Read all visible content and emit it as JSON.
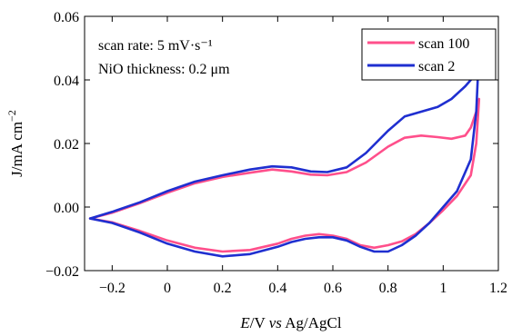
{
  "chart_data": {
    "type": "line",
    "xlabel_parts": [
      {
        "text": "E",
        "italic": true
      },
      {
        "text": "/V ",
        "italic": false
      },
      {
        "text": "vs",
        "italic": true
      },
      {
        "text": " Ag/AgCl",
        "italic": false
      }
    ],
    "ylabel": "J/mA cm",
    "ylabel_sup": "−2",
    "xlim": [
      -0.3,
      1.2
    ],
    "ylim": [
      -0.02,
      0.06
    ],
    "xticks": [
      -0.2,
      0,
      0.2,
      0.4,
      0.6,
      0.8,
      1,
      1.2
    ],
    "xtick_labels": [
      "−0.2",
      "0",
      "0.2",
      "0.4",
      "0.6",
      "0.8",
      "1",
      "1.2"
    ],
    "yticks": [
      -0.02,
      0,
      0.02,
      0.04,
      0.06
    ],
    "ytick_labels": [
      "−0.02",
      "0.00",
      "0.02",
      "0.04",
      "0.06"
    ],
    "grid": false,
    "legend_position": "top-right",
    "annotations": [
      "scan rate: 5 mV·s⁻¹",
      "NiO thickness: 0.2 μm"
    ],
    "series": [
      {
        "name": "scan 100",
        "color": "#ff4f8b",
        "upper": [
          [
            -0.28,
            -0.0036
          ],
          [
            -0.2,
            -0.0018
          ],
          [
            -0.1,
            0.0012
          ],
          [
            0,
            0.0045
          ],
          [
            0.1,
            0.0075
          ],
          [
            0.2,
            0.0095
          ],
          [
            0.3,
            0.0108
          ],
          [
            0.38,
            0.0118
          ],
          [
            0.45,
            0.0112
          ],
          [
            0.52,
            0.0102
          ],
          [
            0.58,
            0.01
          ],
          [
            0.65,
            0.011
          ],
          [
            0.72,
            0.014
          ],
          [
            0.8,
            0.019
          ],
          [
            0.86,
            0.0218
          ],
          [
            0.92,
            0.0225
          ],
          [
            0.98,
            0.022
          ],
          [
            1.03,
            0.0215
          ],
          [
            1.08,
            0.0225
          ],
          [
            1.1,
            0.025
          ],
          [
            1.12,
            0.03
          ],
          [
            1.13,
            0.034
          ]
        ],
        "lower": [
          [
            1.13,
            0.034
          ],
          [
            1.12,
            0.02
          ],
          [
            1.1,
            0.01
          ],
          [
            1.05,
            0.0035
          ],
          [
            1.0,
            -0.001
          ],
          [
            0.95,
            -0.005
          ],
          [
            0.9,
            -0.0085
          ],
          [
            0.85,
            -0.0108
          ],
          [
            0.8,
            -0.012
          ],
          [
            0.75,
            -0.0128
          ],
          [
            0.7,
            -0.012
          ],
          [
            0.65,
            -0.01
          ],
          [
            0.6,
            -0.009
          ],
          [
            0.55,
            -0.0085
          ],
          [
            0.5,
            -0.009
          ],
          [
            0.45,
            -0.01
          ],
          [
            0.4,
            -0.0115
          ],
          [
            0.3,
            -0.0135
          ],
          [
            0.2,
            -0.014
          ],
          [
            0.1,
            -0.0128
          ],
          [
            0,
            -0.0105
          ],
          [
            -0.1,
            -0.0075
          ],
          [
            -0.2,
            -0.0048
          ],
          [
            -0.28,
            -0.0036
          ]
        ]
      },
      {
        "name": "scan 2",
        "color": "#1f2fd0",
        "upper": [
          [
            -0.28,
            -0.0036
          ],
          [
            -0.2,
            -0.0015
          ],
          [
            -0.1,
            0.0015
          ],
          [
            0,
            0.005
          ],
          [
            0.1,
            0.008
          ],
          [
            0.2,
            0.01
          ],
          [
            0.3,
            0.0118
          ],
          [
            0.38,
            0.0128
          ],
          [
            0.45,
            0.0125
          ],
          [
            0.52,
            0.0112
          ],
          [
            0.58,
            0.011
          ],
          [
            0.65,
            0.0125
          ],
          [
            0.72,
            0.017
          ],
          [
            0.8,
            0.024
          ],
          [
            0.86,
            0.0285
          ],
          [
            0.92,
            0.03
          ],
          [
            0.98,
            0.0315
          ],
          [
            1.03,
            0.034
          ],
          [
            1.08,
            0.038
          ],
          [
            1.1,
            0.04
          ],
          [
            1.12,
            0.042
          ],
          [
            1.125,
            0.04
          ]
        ],
        "lower": [
          [
            1.125,
            0.04
          ],
          [
            1.12,
            0.03
          ],
          [
            1.1,
            0.015
          ],
          [
            1.05,
            0.005
          ],
          [
            1.0,
            0.0
          ],
          [
            0.95,
            -0.005
          ],
          [
            0.9,
            -0.009
          ],
          [
            0.85,
            -0.012
          ],
          [
            0.8,
            -0.014
          ],
          [
            0.75,
            -0.014
          ],
          [
            0.7,
            -0.0125
          ],
          [
            0.65,
            -0.0105
          ],
          [
            0.6,
            -0.0095
          ],
          [
            0.55,
            -0.0095
          ],
          [
            0.5,
            -0.01
          ],
          [
            0.45,
            -0.011
          ],
          [
            0.4,
            -0.0125
          ],
          [
            0.3,
            -0.0148
          ],
          [
            0.2,
            -0.0155
          ],
          [
            0.1,
            -0.014
          ],
          [
            0,
            -0.0115
          ],
          [
            -0.1,
            -0.008
          ],
          [
            -0.2,
            -0.005
          ],
          [
            -0.28,
            -0.0036
          ]
        ]
      }
    ]
  }
}
